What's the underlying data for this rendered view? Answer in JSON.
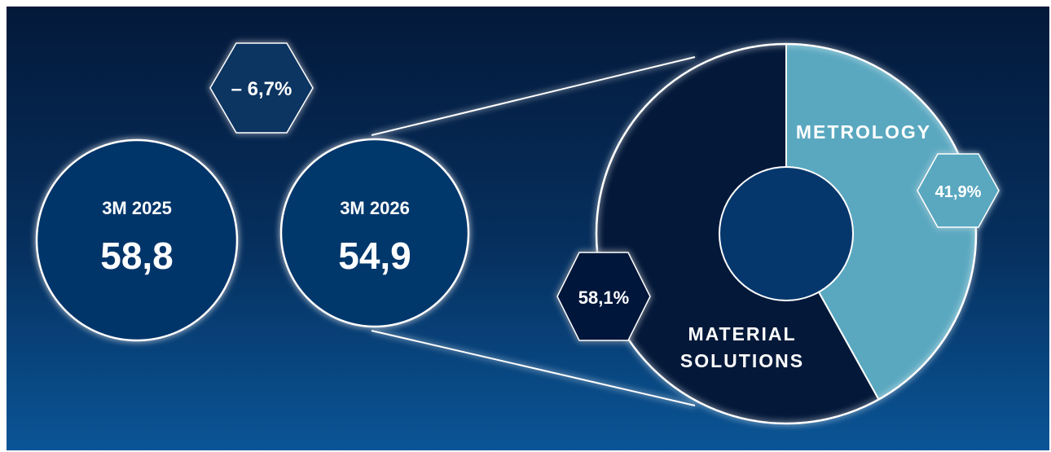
{
  "change": {
    "label": "– 6,7%"
  },
  "periods": [
    {
      "label": "3M 2025",
      "value": "58,8"
    },
    {
      "label": "3M 2026",
      "value": "54,9"
    }
  ],
  "colors": {
    "background_top": "#04193a",
    "background_bottom": "#0a5596",
    "material_solutions": "#04193a",
    "metrology": "#5aa8c0",
    "outline": "#ffffff"
  },
  "chart_data": [
    {
      "type": "bar",
      "categories": [
        "3M 2025",
        "3M 2026"
      ],
      "values": [
        58.8,
        54.9
      ],
      "value_labels": [
        "58,8",
        "54,9"
      ],
      "change_label": "– 6,7%"
    },
    {
      "type": "pie",
      "donut": true,
      "slices": [
        {
          "label_lines": [
            "METROLOGY"
          ],
          "value": 41.9,
          "value_label": "41,9%",
          "color": "#5aa8c0"
        },
        {
          "label_lines": [
            "MATERIAL",
            "SOLUTIONS"
          ],
          "value": 58.1,
          "value_label": "58,1%",
          "color": "#04193a"
        }
      ]
    }
  ]
}
